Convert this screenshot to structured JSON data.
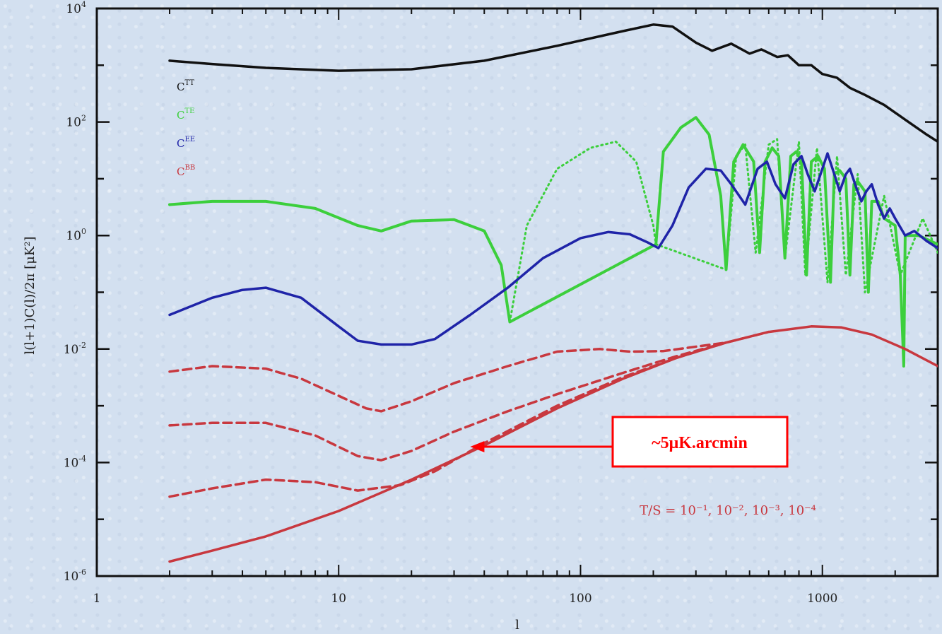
{
  "chart_data": {
    "type": "line",
    "xscale": "log",
    "yscale": "log",
    "xlim": [
      1,
      3000
    ],
    "ylim": [
      1e-06,
      10000
    ],
    "xlabel": "l",
    "ylabel": "l(l+1)C(l)/2π [μK²]",
    "x_ticks": [
      {
        "value": 1,
        "label": "1"
      },
      {
        "value": 10,
        "label": "10"
      },
      {
        "value": 100,
        "label": "100"
      },
      {
        "value": 1000,
        "label": "1000"
      }
    ],
    "y_ticks": [
      {
        "value": 10000,
        "base": "10",
        "exp": "4"
      },
      {
        "value": 100,
        "base": "10",
        "exp": "2"
      },
      {
        "value": 1,
        "base": "10",
        "exp": "0"
      },
      {
        "value": 0.01,
        "base": "10",
        "exp": "-2"
      },
      {
        "value": 0.0001,
        "base": "10",
        "exp": "-4"
      },
      {
        "value": 1e-06,
        "base": "10",
        "exp": "-6"
      }
    ],
    "legend": [
      {
        "base": "C",
        "sup": "TT",
        "color": "#111111"
      },
      {
        "base": "C",
        "sup": "TE",
        "color": "#3ccf3c"
      },
      {
        "base": "C",
        "sup": "EE",
        "color": "#1f24a8"
      },
      {
        "base": "C",
        "sup": "BB",
        "color": "#c8383f"
      }
    ],
    "series": [
      {
        "key": "TT",
        "color": "#111111",
        "style": "solid",
        "points": [
          [
            2,
            1200
          ],
          [
            3,
            1050
          ],
          [
            5,
            900
          ],
          [
            10,
            800
          ],
          [
            20,
            850
          ],
          [
            40,
            1200
          ],
          [
            80,
            2200
          ],
          [
            150,
            4000
          ],
          [
            200,
            5200
          ],
          [
            240,
            4800
          ],
          [
            300,
            2500
          ],
          [
            350,
            1800
          ],
          [
            420,
            2400
          ],
          [
            500,
            1600
          ],
          [
            560,
            1900
          ],
          [
            650,
            1400
          ],
          [
            720,
            1500
          ],
          [
            800,
            1000
          ],
          [
            900,
            1000
          ],
          [
            1000,
            700
          ],
          [
            1150,
            600
          ],
          [
            1300,
            400
          ],
          [
            1500,
            300
          ],
          [
            1800,
            200
          ],
          [
            2200,
            110
          ],
          [
            2700,
            60
          ],
          [
            3000,
            45
          ]
        ]
      },
      {
        "key": "TE",
        "color": "#3ccf3c",
        "style": "solid",
        "dips_to_bottom": true,
        "points": [
          [
            2,
            3.5
          ],
          [
            3,
            4.0
          ],
          [
            5,
            4.0
          ],
          [
            8,
            3.0
          ],
          [
            12,
            1.5
          ],
          [
            15,
            1.2
          ],
          [
            20,
            1.8
          ],
          [
            30,
            1.9
          ],
          [
            40,
            1.2
          ],
          [
            47,
            0.3
          ],
          [
            51,
            0.03
          ],
          [
            205,
            0.7
          ],
          [
            220,
            30
          ],
          [
            260,
            80
          ],
          [
            300,
            120
          ],
          [
            340,
            60
          ],
          [
            380,
            5
          ],
          [
            400,
            0.25
          ],
          [
            430,
            20
          ],
          [
            470,
            40
          ],
          [
            520,
            20
          ],
          [
            550,
            0.5
          ],
          [
            580,
            20
          ],
          [
            620,
            35
          ],
          [
            660,
            25
          ],
          [
            700,
            0.4
          ],
          [
            740,
            25
          ],
          [
            780,
            30
          ],
          [
            820,
            20
          ],
          [
            860,
            0.2
          ],
          [
            900,
            20
          ],
          [
            960,
            25
          ],
          [
            1020,
            15
          ],
          [
            1080,
            0.15
          ],
          [
            1120,
            12
          ],
          [
            1180,
            14
          ],
          [
            1250,
            10
          ],
          [
            1300,
            0.2
          ],
          [
            1350,
            8
          ],
          [
            1400,
            9
          ],
          [
            1500,
            6
          ],
          [
            1550,
            0.1
          ],
          [
            1600,
            4
          ],
          [
            1700,
            4
          ],
          [
            1800,
            2
          ],
          [
            2000,
            1.5
          ],
          [
            2100,
            0.2
          ],
          [
            2170,
            0.005
          ],
          [
            2200,
            1
          ],
          [
            2500,
            1
          ],
          [
            2800,
            0.8
          ],
          [
            3000,
            0.7
          ]
        ]
      },
      {
        "key": "TE-negative",
        "color": "#3ccf3c",
        "style": "dotted",
        "points": [
          [
            51,
            0.03
          ],
          [
            60,
            1.5
          ],
          [
            80,
            15
          ],
          [
            110,
            35
          ],
          [
            140,
            45
          ],
          [
            170,
            20
          ],
          [
            200,
            1.5
          ],
          [
            205,
            0.7
          ],
          [
            400,
            0.25
          ],
          [
            440,
            25
          ],
          [
            480,
            40
          ],
          [
            530,
            0.5
          ],
          [
            600,
            40
          ],
          [
            650,
            50
          ],
          [
            700,
            0.4
          ],
          [
            800,
            45
          ],
          [
            850,
            0.2
          ],
          [
            950,
            35
          ],
          [
            1050,
            0.15
          ],
          [
            1150,
            25
          ],
          [
            1250,
            0.2
          ],
          [
            1400,
            12
          ],
          [
            1500,
            0.1
          ],
          [
            1800,
            5
          ],
          [
            2100,
            0.2
          ],
          [
            2600,
            2
          ],
          [
            3000,
            0.5
          ]
        ]
      },
      {
        "key": "EE",
        "color": "#1f24a8",
        "style": "solid",
        "points": [
          [
            2,
            0.04
          ],
          [
            3,
            0.08
          ],
          [
            4,
            0.11
          ],
          [
            5,
            0.12
          ],
          [
            7,
            0.08
          ],
          [
            10,
            0.025
          ],
          [
            12,
            0.014
          ],
          [
            15,
            0.012
          ],
          [
            20,
            0.012
          ],
          [
            25,
            0.015
          ],
          [
            35,
            0.04
          ],
          [
            50,
            0.12
          ],
          [
            70,
            0.4
          ],
          [
            100,
            0.9
          ],
          [
            130,
            1.15
          ],
          [
            160,
            1.05
          ],
          [
            190,
            0.75
          ],
          [
            210,
            0.6
          ],
          [
            240,
            1.5
          ],
          [
            280,
            7
          ],
          [
            330,
            15
          ],
          [
            380,
            14
          ],
          [
            420,
            8
          ],
          [
            480,
            3.5
          ],
          [
            540,
            15
          ],
          [
            590,
            20
          ],
          [
            640,
            8
          ],
          [
            700,
            4.5
          ],
          [
            760,
            18
          ],
          [
            820,
            25
          ],
          [
            870,
            12
          ],
          [
            930,
            6
          ],
          [
            1000,
            15
          ],
          [
            1050,
            28
          ],
          [
            1120,
            12
          ],
          [
            1180,
            6
          ],
          [
            1250,
            12
          ],
          [
            1300,
            15
          ],
          [
            1380,
            7
          ],
          [
            1450,
            4
          ],
          [
            1520,
            6
          ],
          [
            1600,
            8
          ],
          [
            1700,
            3.5
          ],
          [
            1800,
            2
          ],
          [
            1900,
            3
          ],
          [
            2000,
            2
          ],
          [
            2200,
            1
          ],
          [
            2400,
            1.2
          ],
          [
            2700,
            0.8
          ],
          [
            3000,
            0.6
          ]
        ]
      },
      {
        "key": "BB-lensing",
        "color": "#c8383f",
        "style": "solid",
        "points": [
          [
            2,
            1.8e-06
          ],
          [
            3,
            2.8e-06
          ],
          [
            5,
            5e-06
          ],
          [
            10,
            1.4e-05
          ],
          [
            20,
            5e-05
          ],
          [
            40,
            0.0002
          ],
          [
            80,
            0.0009
          ],
          [
            150,
            0.003
          ],
          [
            250,
            0.007
          ],
          [
            400,
            0.013
          ],
          [
            600,
            0.02
          ],
          [
            900,
            0.025
          ],
          [
            1200,
            0.024
          ],
          [
            1600,
            0.018
          ],
          [
            2200,
            0.01
          ],
          [
            3000,
            0.005
          ]
        ]
      },
      {
        "key": "BB-r-0.1",
        "color": "#c8383f",
        "style": "dashed",
        "points": [
          [
            2,
            0.004
          ],
          [
            3,
            0.005
          ],
          [
            5,
            0.0045
          ],
          [
            7,
            0.003
          ],
          [
            10,
            0.0015
          ],
          [
            13,
            0.0009
          ],
          [
            15,
            0.0008
          ],
          [
            20,
            0.0012
          ],
          [
            30,
            0.0025
          ],
          [
            50,
            0.005
          ],
          [
            80,
            0.009
          ],
          [
            120,
            0.01
          ],
          [
            160,
            0.009
          ],
          [
            220,
            0.0092
          ],
          [
            400,
            0.013
          ],
          [
            600,
            0.02
          ]
        ]
      },
      {
        "key": "BB-r-0.01",
        "color": "#c8383f",
        "style": "dashed",
        "points": [
          [
            2,
            0.00045
          ],
          [
            3,
            0.0005
          ],
          [
            5,
            0.0005
          ],
          [
            8,
            0.0003
          ],
          [
            12,
            0.00013
          ],
          [
            15,
            0.00011
          ],
          [
            20,
            0.00016
          ],
          [
            30,
            0.00035
          ],
          [
            50,
            0.0008
          ],
          [
            80,
            0.0016
          ],
          [
            150,
            0.0038
          ],
          [
            250,
            0.0075
          ],
          [
            400,
            0.013
          ]
        ]
      },
      {
        "key": "BB-r-0.001",
        "color": "#c8383f",
        "style": "dashed",
        "points": [
          [
            2,
            2.5e-05
          ],
          [
            3,
            3.5e-05
          ],
          [
            5,
            5e-05
          ],
          [
            8,
            4.5e-05
          ],
          [
            12,
            3.2e-05
          ],
          [
            18,
            4e-05
          ],
          [
            25,
            7e-05
          ],
          [
            40,
            0.00022
          ],
          [
            80,
            0.001
          ],
          [
            150,
            0.0032
          ],
          [
            250,
            0.007
          ],
          [
            400,
            0.013
          ]
        ]
      }
    ],
    "annotation": {
      "text": "T/S = 10⁻¹, 10⁻², 10⁻³, 10⁻⁴",
      "color": "#c8383f"
    },
    "callout": {
      "text": "~5μK.arcmin",
      "color": "#ff0000",
      "points_to_l": 35,
      "points_to_value": 0.00019
    }
  }
}
